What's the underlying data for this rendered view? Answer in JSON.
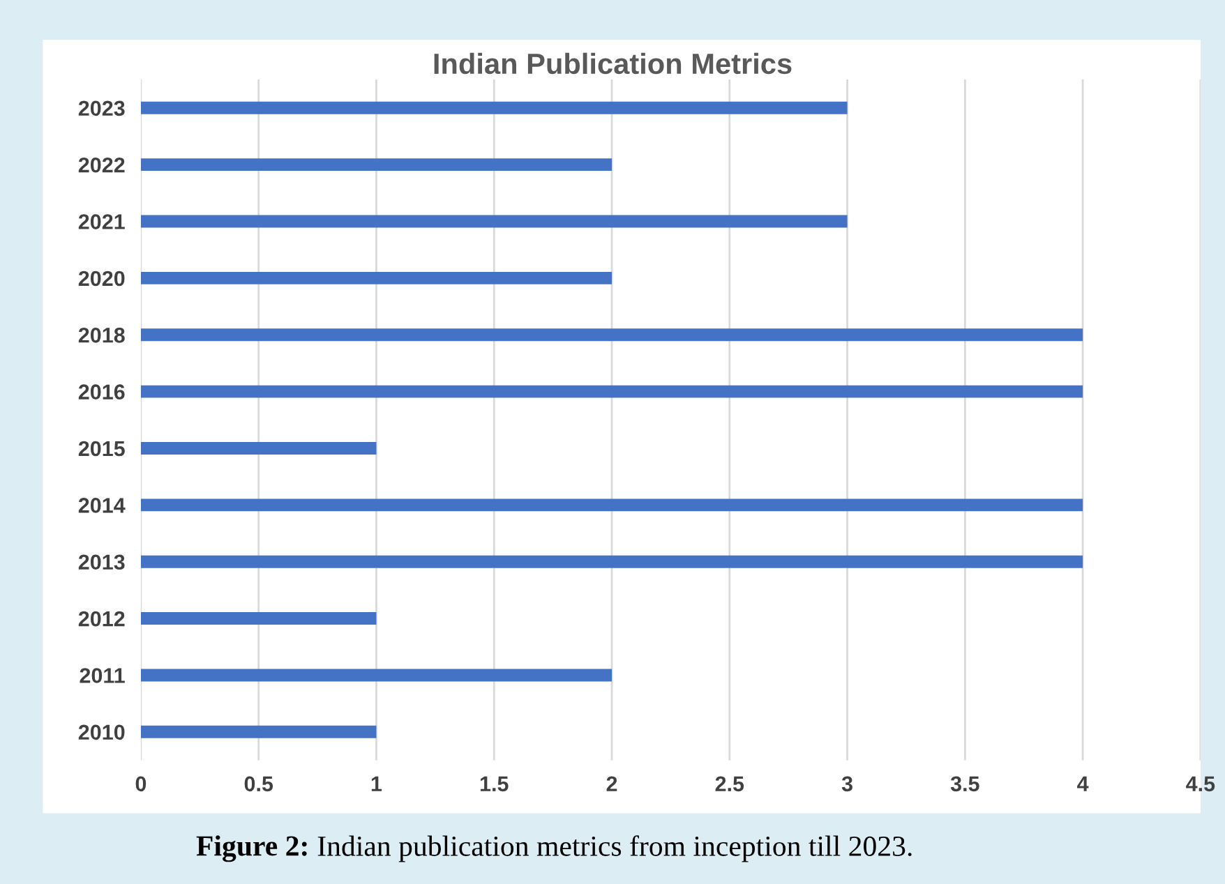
{
  "chart_data": {
    "type": "bar",
    "orientation": "horizontal",
    "title": "Indian Publication Metrics",
    "categories": [
      "2023",
      "2022",
      "2021",
      "2020",
      "2018",
      "2016",
      "2015",
      "2014",
      "2013",
      "2012",
      "2011",
      "2010"
    ],
    "values": [
      3,
      2,
      3,
      2,
      4,
      4,
      1,
      4,
      4,
      1,
      2,
      1
    ],
    "color": "#4472c4",
    "xlim": [
      0,
      4.5
    ],
    "xticks": [
      0,
      0.5,
      1,
      1.5,
      2,
      2.5,
      3,
      3.5,
      4,
      4.5
    ],
    "grid": "x",
    "annotations": [
      "Figure 2:",
      "Indian publication metrics from inception till 2023."
    ]
  }
}
